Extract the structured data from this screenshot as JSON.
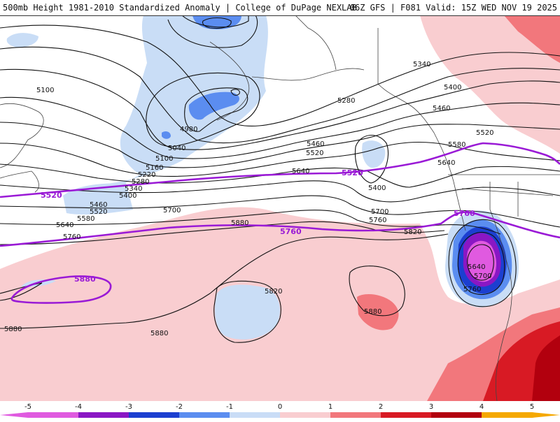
{
  "header": {
    "left_text": "500mb Height 1981-2010 Standardized Anomaly | College of DuPage NEXLAB",
    "right_text": "06Z GFS | F081 Valid: 15Z WED NOV 19 2025"
  },
  "colors": {
    "contour": "#111111",
    "highlight_contour": "#9a1ad6",
    "anomaly": {
      "-5": "#e05ae0",
      "-4": "#8a17c4",
      "-3": "#1c3fd0",
      "-2": "#5b8df0",
      "-1": "#c9ddf6",
      "0": "#ffffff",
      "1": "#f9cdd0",
      "2": "#f2777c",
      "3": "#d81a24",
      "4": "#b2000e",
      "5": "#f5a800"
    }
  },
  "colorbar": {
    "ticks": [
      "-5",
      "-4",
      "-3",
      "-2",
      "-1",
      "0",
      "1",
      "2",
      "3",
      "4",
      "5"
    ]
  },
  "contour_labels": [
    "5100",
    "4980",
    "5040",
    "5100",
    "5160",
    "5220",
    "5280",
    "5340",
    "5400",
    "5460",
    "5520",
    "5580",
    "5640",
    "5760",
    "5700",
    "5880",
    "5280",
    "5340",
    "5400",
    "5460",
    "5520",
    "5580",
    "5640",
    "5700",
    "5760",
    "5820",
    "5400",
    "5460",
    "5520",
    "5640",
    "5640",
    "5700",
    "5760",
    "5820",
    "5880",
    "5880",
    "5880"
  ],
  "highlight_labels": [
    "5520",
    "5520",
    "5760",
    "5760",
    "5880"
  ]
}
